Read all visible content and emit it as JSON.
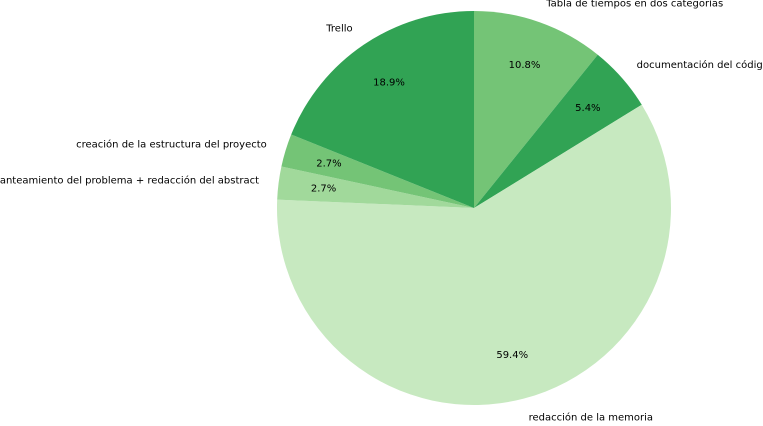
{
  "chart_data": {
    "type": "pie",
    "start_angle_deg": 90,
    "direction": "clockwise",
    "slices": [
      {
        "label": "Tabla de tiempos en dos categorías",
        "value": 10.8,
        "pct_label": "10.8%",
        "color": "#74c476"
      },
      {
        "label": "documentación del código",
        "value": 5.4,
        "pct_label": "5.4%",
        "color": "#31a354"
      },
      {
        "label": "redacción de la memoria",
        "value": 59.4,
        "pct_label": "59.4%",
        "color": "#c7e9c0"
      },
      {
        "label": "planteamiento del problema + redacción del abstract",
        "value": 2.7,
        "pct_label": "2.7%",
        "color": "#a1d99b"
      },
      {
        "label": "creación de la estructura del proyecto",
        "value": 2.7,
        "pct_label": "2.7%",
        "color": "#74c476"
      },
      {
        "label": "Trello",
        "value": 18.9,
        "pct_label": "18.9%",
        "color": "#31a354"
      }
    ]
  }
}
